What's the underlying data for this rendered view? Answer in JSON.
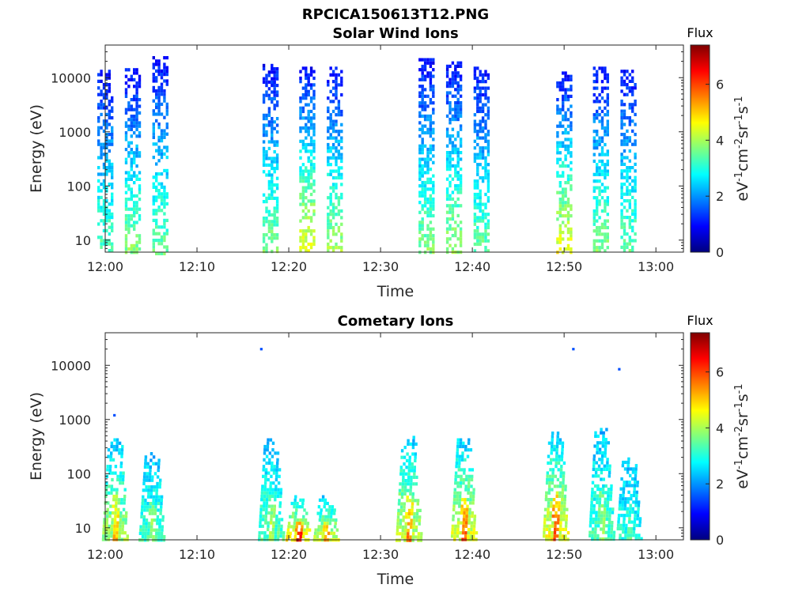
{
  "figure": {
    "title": "RPCICA150613T12.PNG"
  },
  "colorscale": [
    "#00007f",
    "#0000ff",
    "#007fff",
    "#00ffff",
    "#7fff7f",
    "#ffff00",
    "#ff7f00",
    "#ff0000",
    "#7f0000"
  ],
  "chart_data": [
    {
      "type": "heatmap",
      "title": "Solar Wind Ions",
      "xlabel": "Time",
      "ylabel": "Energy (eV)",
      "x_range": [
        "12:00",
        "13:03"
      ],
      "x_ticks": [
        "12:00",
        "12:10",
        "12:20",
        "12:30",
        "12:40",
        "12:50",
        "13:00"
      ],
      "y_scale": "log",
      "y_range": [
        6,
        40000
      ],
      "y_ticks": [
        "10",
        "100",
        "1000",
        "10000"
      ],
      "colorbar": {
        "label": "Flux",
        "unit": "eV-1cm-2sr-1s-1",
        "range": [
          0,
          7.4
        ],
        "ticks": [
          "0",
          "2",
          "4",
          "6"
        ]
      },
      "bursts": [
        {
          "time": "12:00",
          "emin": 6,
          "emax": 14000,
          "peak_flux": 3.5
        },
        {
          "time": "12:03",
          "emin": 6,
          "emax": 15000,
          "peak_flux": 3.8
        },
        {
          "time": "12:06",
          "emin": 6,
          "emax": 25000,
          "peak_flux": 3.6
        },
        {
          "time": "12:18",
          "emin": 6,
          "emax": 18000,
          "peak_flux": 3.8
        },
        {
          "time": "12:22",
          "emin": 6,
          "emax": 16000,
          "peak_flux": 4.6
        },
        {
          "time": "12:25",
          "emin": 6,
          "emax": 16000,
          "peak_flux": 4.0
        },
        {
          "time": "12:35",
          "emin": 6,
          "emax": 23000,
          "peak_flux": 3.8
        },
        {
          "time": "12:38",
          "emin": 6,
          "emax": 20000,
          "peak_flux": 4.0
        },
        {
          "time": "12:41",
          "emin": 6,
          "emax": 16000,
          "peak_flux": 3.6
        },
        {
          "time": "12:50",
          "emin": 6,
          "emax": 13000,
          "peak_flux": 4.6
        },
        {
          "time": "12:54",
          "emin": 6,
          "emax": 16000,
          "peak_flux": 3.8
        },
        {
          "time": "12:57",
          "emin": 6,
          "emax": 14000,
          "peak_flux": 3.6
        }
      ]
    },
    {
      "type": "heatmap",
      "title": "Cometary Ions",
      "xlabel": "Time",
      "ylabel": "Energy (eV)",
      "x_range": [
        "12:00",
        "13:03"
      ],
      "x_ticks": [
        "12:00",
        "12:10",
        "12:20",
        "12:30",
        "12:40",
        "12:50",
        "13:00"
      ],
      "y_scale": "log",
      "y_range": [
        6,
        40000
      ],
      "y_ticks": [
        "10",
        "100",
        "1000",
        "10000"
      ],
      "colorbar": {
        "label": "Flux",
        "unit": "eV-1cm-2sr-1s-1",
        "range": [
          0,
          7.4
        ],
        "ticks": [
          "0",
          "2",
          "4",
          "6"
        ]
      },
      "bursts": [
        {
          "time": "12:01",
          "emin": 6,
          "emax": 450,
          "peak_flux": 5.2
        },
        {
          "time": "12:05",
          "emin": 15,
          "emax": 250,
          "peak_flux": 4.0
        },
        {
          "time": "12:18",
          "emin": 10,
          "emax": 450,
          "peak_flux": 4.2
        },
        {
          "time": "12:21",
          "emin": 6,
          "emax": 40,
          "peak_flux": 6.8
        },
        {
          "time": "12:24",
          "emin": 6,
          "emax": 40,
          "peak_flux": 5.8
        },
        {
          "time": "12:33",
          "emin": 8,
          "emax": 500,
          "peak_flux": 5.6
        },
        {
          "time": "12:39",
          "emin": 6,
          "emax": 450,
          "peak_flux": 6.0
        },
        {
          "time": "12:49",
          "emin": 6,
          "emax": 600,
          "peak_flux": 6.2
        },
        {
          "time": "12:54",
          "emin": 12,
          "emax": 700,
          "peak_flux": 4.0
        },
        {
          "time": "12:57",
          "emin": 6,
          "emax": 200,
          "peak_flux": 3.6
        }
      ],
      "isolated_points": [
        {
          "time": "12:01",
          "energy": 1200,
          "flux": 1.5
        },
        {
          "time": "12:17",
          "energy": 20000,
          "flux": 1.5
        },
        {
          "time": "12:51",
          "energy": 20000,
          "flux": 1.5
        },
        {
          "time": "12:56",
          "energy": 8500,
          "flux": 1.5
        }
      ]
    }
  ]
}
